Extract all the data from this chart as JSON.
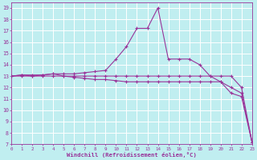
{
  "bg_color": "#c0eef0",
  "grid_color": "#ffffff",
  "line_color": "#993399",
  "xlim": [
    0,
    23
  ],
  "ylim": [
    7,
    19.5
  ],
  "xticks": [
    0,
    1,
    2,
    3,
    4,
    5,
    6,
    7,
    8,
    9,
    10,
    11,
    12,
    13,
    14,
    15,
    16,
    17,
    18,
    19,
    20,
    21,
    22,
    23
  ],
  "yticks": [
    7,
    8,
    9,
    10,
    11,
    12,
    13,
    14,
    15,
    16,
    17,
    18,
    19
  ],
  "xlabel": "Windchill (Refroidissement éolien,°C)",
  "line1_x": [
    0,
    1,
    2,
    3,
    4,
    5,
    6,
    7,
    8,
    9,
    10,
    11,
    12,
    13,
    14,
    15,
    16,
    17,
    18,
    19,
    20,
    21,
    22,
    23
  ],
  "line1_y": [
    13.0,
    13.0,
    13.0,
    13.0,
    13.0,
    13.0,
    13.0,
    13.0,
    13.0,
    13.0,
    13.0,
    13.0,
    13.0,
    13.0,
    13.0,
    13.0,
    13.0,
    13.0,
    13.0,
    13.0,
    13.0,
    13.0,
    12.0,
    7.2
  ],
  "line2_x": [
    0,
    1,
    2,
    3,
    4,
    5,
    6,
    7,
    8,
    9,
    10,
    11,
    12,
    13,
    14,
    15,
    16,
    17,
    18,
    19,
    20,
    21,
    22,
    23
  ],
  "line2_y": [
    13.0,
    13.1,
    13.0,
    13.1,
    13.2,
    13.0,
    12.9,
    12.8,
    12.7,
    12.7,
    12.6,
    12.5,
    12.5,
    12.5,
    12.5,
    12.5,
    12.5,
    12.5,
    12.5,
    12.5,
    12.5,
    12.0,
    11.5,
    7.2
  ],
  "line3_x": [
    0,
    1,
    2,
    3,
    4,
    5,
    6,
    7,
    8,
    9,
    10,
    11,
    12,
    13,
    14,
    15,
    16,
    17,
    18,
    19,
    20,
    21,
    22,
    23
  ],
  "line3_y": [
    13.0,
    13.1,
    13.1,
    13.1,
    13.2,
    13.2,
    13.2,
    13.3,
    13.4,
    13.5,
    14.5,
    15.6,
    17.2,
    17.2,
    19.0,
    14.5,
    14.5,
    14.5,
    14.0,
    13.0,
    12.5,
    11.5,
    11.2,
    7.2
  ]
}
